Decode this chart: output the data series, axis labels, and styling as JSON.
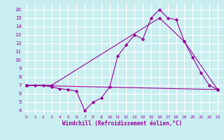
{
  "bg_color": "#c8eef0",
  "line_color": "#990099",
  "grid_color": "#ffffff",
  "xlabel": "Windchill (Refroidissement éolien,°C)",
  "xlabel_color": "#990099",
  "ylim": [
    3.5,
    16.8
  ],
  "xlim": [
    -0.5,
    23.5
  ],
  "yticks": [
    4,
    5,
    6,
    7,
    8,
    9,
    10,
    11,
    12,
    13,
    14,
    15,
    16
  ],
  "xticks": [
    0,
    1,
    2,
    3,
    4,
    5,
    6,
    7,
    8,
    9,
    10,
    11,
    12,
    13,
    14,
    15,
    16,
    17,
    18,
    19,
    20,
    21,
    22,
    23
  ],
  "series1_x": [
    0,
    1,
    2,
    3,
    4,
    5,
    6,
    7,
    8,
    9,
    10,
    11,
    12,
    13,
    14,
    15,
    16,
    17,
    18,
    19,
    20,
    21,
    22,
    23
  ],
  "series1_y": [
    7.0,
    7.0,
    7.0,
    6.8,
    6.6,
    6.5,
    6.3,
    4.0,
    5.0,
    5.5,
    6.8,
    10.5,
    11.8,
    13.0,
    12.5,
    15.0,
    16.0,
    15.0,
    14.8,
    12.2,
    10.3,
    8.5,
    7.0,
    6.5
  ],
  "series2_x": [
    0,
    3,
    16,
    19,
    23
  ],
  "series2_y": [
    7.0,
    7.0,
    15.0,
    12.2,
    6.5
  ],
  "series3_x": [
    0,
    23
  ],
  "series3_y": [
    7.0,
    6.5
  ]
}
